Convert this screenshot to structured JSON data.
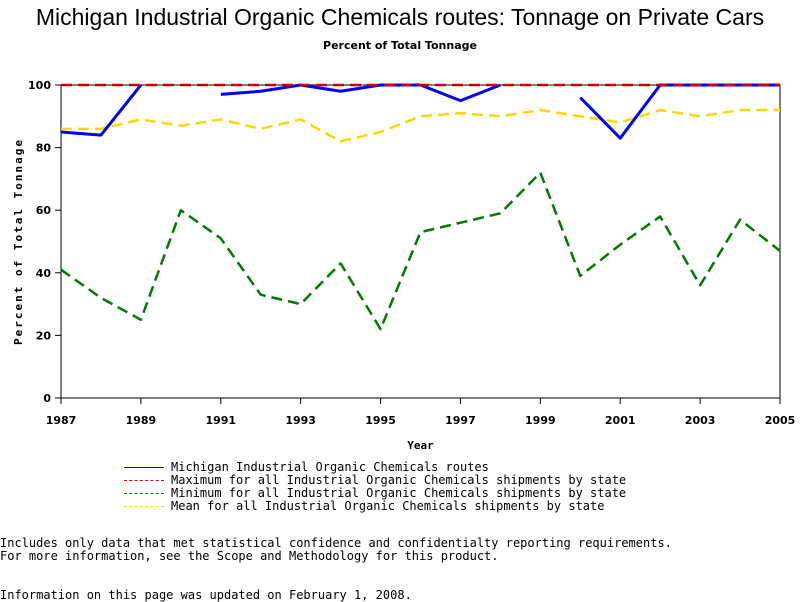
{
  "chart_data": {
    "type": "line",
    "title": "Michigan Industrial Organic Chemicals routes: Tonnage on Private Cars",
    "subtitle": "Percent of Total Tonnage",
    "xlabel": "Year",
    "ylabel": "Percent of Total Tonnage",
    "xlim": [
      1987,
      2005
    ],
    "ylim": [
      0,
      100
    ],
    "x_ticks": [
      1987,
      1989,
      1991,
      1993,
      1995,
      1997,
      1999,
      2001,
      2003,
      2005
    ],
    "y_ticks": [
      0,
      20,
      40,
      60,
      80,
      100
    ],
    "x": [
      1987,
      1988,
      1989,
      1990,
      1991,
      1992,
      1993,
      1994,
      1995,
      1996,
      1997,
      1998,
      1999,
      2000,
      2001,
      2002,
      2003,
      2004,
      2005
    ],
    "series": [
      {
        "name": "Michigan Industrial Organic Chemicals routes",
        "color": "#0000ff",
        "dash": "solid",
        "values": [
          85,
          84,
          100,
          null,
          97,
          98,
          100,
          98,
          100,
          100,
          95,
          100,
          null,
          96,
          83,
          100,
          100,
          100,
          100
        ]
      },
      {
        "name": "Maximum for all Industrial Organic Chemicals shipments by state",
        "color": "#cc0000",
        "dash": "dashed",
        "values": [
          100,
          100,
          100,
          100,
          100,
          100,
          100,
          100,
          100,
          100,
          100,
          100,
          100,
          100,
          100,
          100,
          100,
          100,
          100
        ]
      },
      {
        "name": "Minimum for all Industrial Organic Chemicals shipments by state",
        "color": "#007a00",
        "dash": "dashed",
        "values": [
          41,
          32,
          25,
          60,
          51,
          33,
          30,
          43,
          22,
          53,
          56,
          59,
          72,
          39,
          49,
          58,
          36,
          57,
          47
        ]
      },
      {
        "name": "Mean for all Industrial Organic Chemicals shipments by state",
        "color": "#ffd700",
        "dash": "dashed",
        "values": [
          86,
          86,
          89,
          87,
          89,
          86,
          89,
          82,
          85,
          90,
          91,
          90,
          92,
          90,
          88,
          92,
          90,
          92,
          92
        ]
      }
    ]
  },
  "notes": {
    "line1": "Includes only data that met statistical confidence and confidentialty reporting requirements.",
    "line2": "For more information, see the Scope and Methodology for this product.",
    "updated": "Information on this page was updated on February 1, 2008."
  }
}
